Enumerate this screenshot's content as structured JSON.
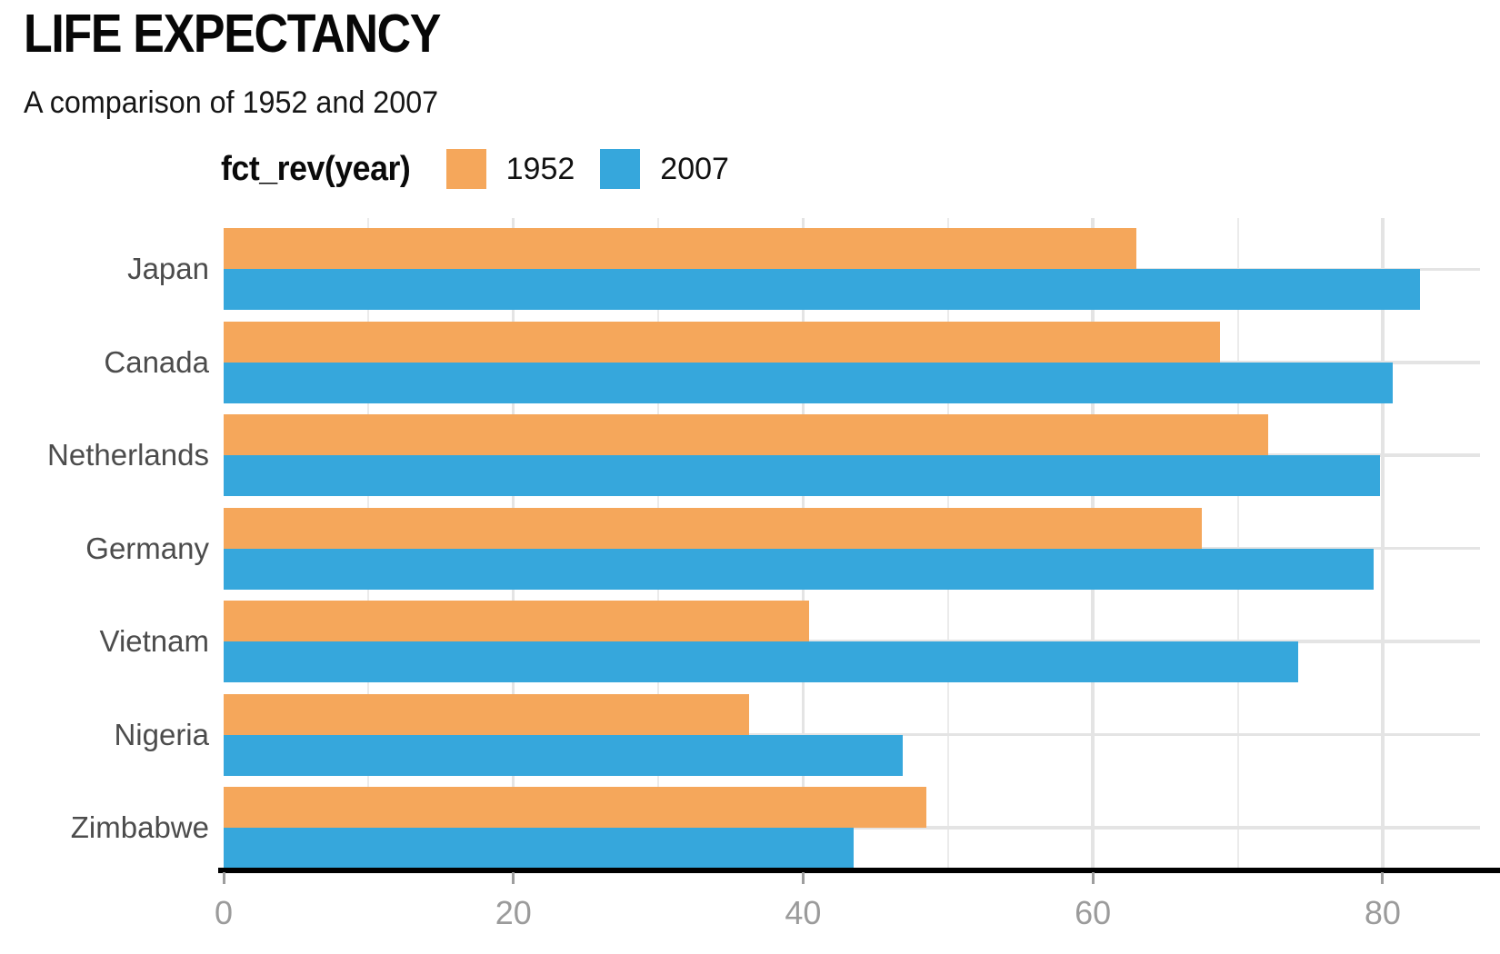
{
  "header": {
    "title": "LIFE EXPECTANCY",
    "subtitle": "A comparison of 1952 and 2007"
  },
  "legend": {
    "title": "fct_rev(year)",
    "items": [
      {
        "label": "1952",
        "color": "#F5A75B"
      },
      {
        "label": "2007",
        "color": "#36A7DC"
      }
    ]
  },
  "chart_data": {
    "type": "bar",
    "orientation": "horizontal",
    "title": "LIFE EXPECTANCY",
    "subtitle": "A comparison of 1952 and 2007",
    "legend_title": "fct_rev(year)",
    "legend_position": "top",
    "categories": [
      "Japan",
      "Canada",
      "Netherlands",
      "Germany",
      "Vietnam",
      "Nigeria",
      "Zimbabwe"
    ],
    "series": [
      {
        "name": "1952",
        "color": "#F5A75B",
        "values": [
          63.0,
          68.8,
          72.1,
          67.5,
          40.4,
          36.3,
          48.5
        ]
      },
      {
        "name": "2007",
        "color": "#36A7DC",
        "values": [
          82.6,
          80.7,
          79.8,
          79.4,
          74.2,
          46.9,
          43.5
        ]
      }
    ],
    "xlabel": "",
    "ylabel": "",
    "x_ticks": [
      0,
      20,
      40,
      60,
      80
    ],
    "xlim": [
      0,
      86.7
    ],
    "grid": "vertical minor every 10, vertical major every 20, horizontal line at each category center",
    "colors": {
      "grid_major": "#e4e4e4",
      "grid_minor": "#ebebeb",
      "axis_line": "#000000",
      "tick_mark": "#9e9e9e",
      "tick_label": "#9b9b9b",
      "category_label": "#4c4c4c"
    }
  }
}
